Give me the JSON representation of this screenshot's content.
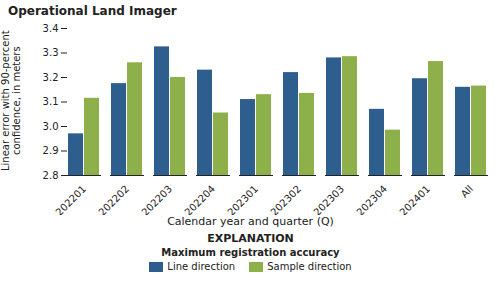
{
  "chart_data": {
    "type": "bar",
    "title": "Operational Land Imager",
    "xlabel": "Calendar year and quarter (Q)",
    "ylabel": "Linear error with 90-percent\nconfidence, in meters",
    "categories": [
      "202201",
      "202202",
      "202203",
      "202204",
      "202301",
      "202302",
      "202303",
      "202304",
      "202401",
      "All"
    ],
    "series": [
      {
        "name": "Line direction",
        "color": "#2E5E8E",
        "values": [
          2.97,
          3.175,
          3.325,
          3.23,
          3.11,
          3.22,
          3.28,
          3.07,
          3.195,
          3.16
        ]
      },
      {
        "name": "Sample direction",
        "color": "#8DB04A",
        "values": [
          3.115,
          3.26,
          3.2,
          3.055,
          3.13,
          3.135,
          3.285,
          2.985,
          3.265,
          3.165
        ]
      }
    ],
    "ylim": [
      2.8,
      3.4
    ],
    "yticks": [
      2.8,
      2.9,
      {
        "value": 3.0,
        "label": "3.0"
      },
      3.1,
      3.2,
      3.3,
      3.4
    ],
    "annotations": [
      "EXPLANATION",
      "Maximum registration accuracy"
    ],
    "legend": "bottom"
  }
}
